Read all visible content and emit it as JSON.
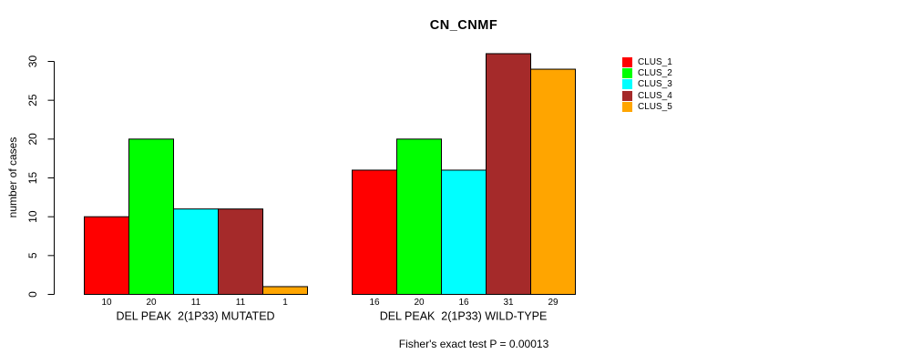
{
  "chart_data": {
    "type": "bar",
    "title": "CN_CNMF",
    "ylabel": "number of cases",
    "xlabel": "",
    "footnote": "Fisher's exact test P = 0.00013",
    "ylim": [
      0,
      30
    ],
    "yticks": [
      0,
      5,
      10,
      15,
      20,
      25,
      30
    ],
    "grid": false,
    "legend_position": "right",
    "bar_value_labels_shown": true,
    "categories": [
      "DEL PEAK  2(1P33) MUTATED",
      "DEL PEAK  2(1P33) WILD-TYPE"
    ],
    "series": [
      {
        "name": "CLUS_1",
        "color": "#FF0000",
        "values": [
          10,
          16
        ]
      },
      {
        "name": "CLUS_2",
        "color": "#00FF00",
        "values": [
          20,
          20
        ]
      },
      {
        "name": "CLUS_3",
        "color": "#00FFFF",
        "values": [
          11,
          16
        ]
      },
      {
        "name": "CLUS_4",
        "color": "#A52A2A",
        "values": [
          11,
          31
        ]
      },
      {
        "name": "CLUS_5",
        "color": "#FFA500",
        "values": [
          1,
          29
        ]
      }
    ],
    "axis_color": "#000000",
    "bar_border_color": "#000000",
    "background_color": "#FFFFFF"
  }
}
